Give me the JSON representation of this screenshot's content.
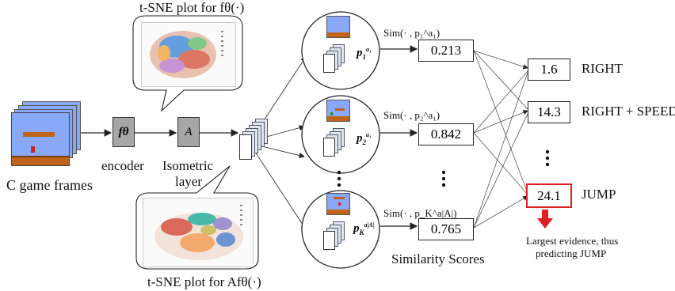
{
  "inputs": {
    "frames_label": "C game frames",
    "encoder_label": "encoder",
    "encoder_symbol": "fθ",
    "layer_label_line1": "Isometric",
    "layer_label_line2": "layer",
    "layer_symbol": "A"
  },
  "tsne": {
    "top_title": "t-SNE plot for fθ(·)",
    "bottom_title": "t-SNE plot for Afθ(·)"
  },
  "prototypes": [
    {
      "label": "p",
      "sup": "a₁",
      "sub": "1",
      "sim_label": "Sim(· , p₁^a₁)",
      "score": "0.213"
    },
    {
      "label": "p",
      "sup": "a₁",
      "sub": "2",
      "sim_label": "Sim(· , p₂^a₁)",
      "score": "0.842"
    },
    {
      "label": "p",
      "sup": "a|A|",
      "sub": "K",
      "sim_label": "Sim(· , p_K^a|A|)",
      "score": "0.765"
    }
  ],
  "similarity_title": "Similarity Scores",
  "actions": [
    {
      "value": "1.6",
      "name": "RIGHT"
    },
    {
      "value": "14.3",
      "name": "RIGHT + SPEED"
    },
    {
      "value": "24.1",
      "name": "JUMP"
    }
  ],
  "conclusion_line1": "Largest evidence, thus",
  "conclusion_line2": "predicting JUMP",
  "colors": {
    "highlight": "#e02020",
    "gray_box": "#a6a6a6",
    "sky": "#8aa8f8",
    "ground": "#c0641c"
  }
}
